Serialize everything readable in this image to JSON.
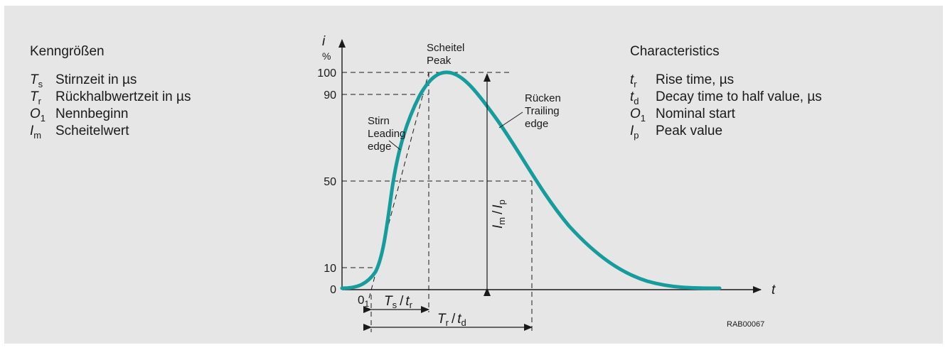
{
  "colors": {
    "curve": "#169c9c",
    "panel": "#e6e6e6",
    "ink": "#1a1a1a"
  },
  "legend_de": {
    "title": "Kenngrößen",
    "items": [
      {
        "sym": "T",
        "sub": "s",
        "text": "Stirnzeit in µs"
      },
      {
        "sym": "T",
        "sub": "r",
        "text": "Rückhalbwertzeit in µs"
      },
      {
        "sym": "O",
        "sub": "1",
        "text": "Nennbeginn"
      },
      {
        "sym": "I",
        "sub": "m",
        "text": "Scheitelwert"
      }
    ]
  },
  "legend_en": {
    "title": "Characteristics",
    "items": [
      {
        "sym": "t",
        "sub": "r",
        "text": "Rise time, µs"
      },
      {
        "sym": "t",
        "sub": "d",
        "text": "Decay time to half value, µs"
      },
      {
        "sym": "O",
        "sub": "1",
        "text": "Nominal start"
      },
      {
        "sym": "I",
        "sub": "p",
        "text": "Peak value"
      }
    ]
  },
  "axis": {
    "y_label": "i",
    "y_unit": "%",
    "x_label": "t",
    "y_ticks": [
      "100",
      "90",
      "50",
      "10",
      "0"
    ]
  },
  "labels": {
    "scheitel": "Scheitel",
    "peak": "Peak",
    "stirn": "Stirn",
    "leading": "Leading",
    "edge1": "edge",
    "ruecken": "Rücken",
    "trailing": "Trailing",
    "edge2": "edge",
    "o1_main": "0",
    "o1_sub": "1",
    "ts_T": "T",
    "ts_s": "s",
    "ts_t": "t",
    "ts_r": "r",
    "tr_T": "T",
    "tr_r": "r",
    "tr_t": "t",
    "tr_d": "d",
    "im_I": "I",
    "im_m": "m",
    "im_slash": "/",
    "im_I2": "I",
    "im_p": "p",
    "slash": "/",
    "code": "RAB00067"
  }
}
